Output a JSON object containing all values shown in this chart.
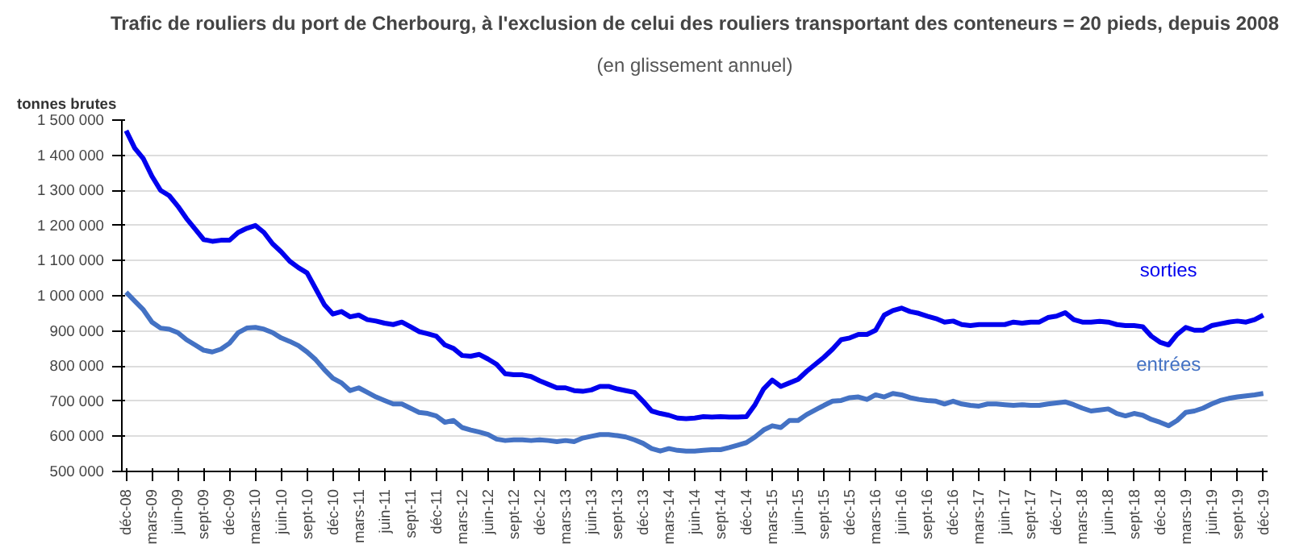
{
  "chart_data": {
    "type": "line",
    "title": "Trafic de rouliers du port de Cherbourg, à l'exclusion de celui des rouliers transportant des conteneurs = 20 pieds, depuis 2008",
    "subtitle": "(en glissement annuel)",
    "ylabel": "tonnes brutes",
    "categories": [
      "déc-08",
      null,
      null,
      "mars-09",
      null,
      null,
      "juin-09",
      null,
      null,
      "sept-09",
      null,
      null,
      "déc-09",
      null,
      null,
      "mars-10",
      null,
      null,
      "juin-10",
      null,
      null,
      "sept-10",
      null,
      null,
      "déc-10",
      null,
      null,
      "mars-11",
      null,
      null,
      "juin-11",
      null,
      null,
      "sept-11",
      null,
      null,
      "déc-11",
      null,
      null,
      "mars-12",
      null,
      null,
      "juin-12",
      null,
      null,
      "sept-12",
      null,
      null,
      "déc-12",
      null,
      null,
      "mars-13",
      null,
      null,
      "juin-13",
      null,
      null,
      "sept-13",
      null,
      null,
      "déc-13",
      null,
      null,
      "mars-14",
      null,
      null,
      "juin-14",
      null,
      null,
      "sept-14",
      null,
      null,
      "déc-14",
      null,
      null,
      "mars-15",
      null,
      null,
      "juin-15",
      null,
      null,
      "sept-15",
      null,
      null,
      "déc-15",
      null,
      null,
      "mars-16",
      null,
      null,
      "juin-16",
      null,
      null,
      "sept-16",
      null,
      null,
      "déc-16",
      null,
      null,
      "mars-17",
      null,
      null,
      "juin-17",
      null,
      null,
      "sept-17",
      null,
      null,
      "déc-17",
      null,
      null,
      "mars-18",
      null,
      null,
      "juin-18",
      null,
      null,
      "sept-18",
      null,
      null,
      "déc-18",
      null,
      null,
      "mars-19",
      null,
      null,
      "juin-19",
      null,
      null,
      "sept-19",
      null,
      null,
      "déc-19"
    ],
    "series": [
      {
        "name": "sorties",
        "color": "#0000ee",
        "values": [
          1470000,
          1420000,
          1390000,
          1340000,
          1300000,
          1285000,
          1255000,
          1220000,
          1190000,
          1160000,
          1155000,
          1158000,
          1158000,
          1180000,
          1192000,
          1200000,
          1180000,
          1148000,
          1125000,
          1098000,
          1080000,
          1065000,
          1020000,
          975000,
          948000,
          955000,
          940000,
          945000,
          932000,
          928000,
          922000,
          918000,
          925000,
          912000,
          898000,
          892000,
          885000,
          860000,
          850000,
          830000,
          828000,
          833000,
          820000,
          805000,
          778000,
          775000,
          775000,
          770000,
          758000,
          748000,
          738000,
          738000,
          730000,
          728000,
          732000,
          742000,
          742000,
          735000,
          730000,
          725000,
          700000,
          672000,
          665000,
          660000,
          652000,
          650000,
          652000,
          656000,
          655000,
          656000,
          655000,
          655000,
          656000,
          690000,
          735000,
          760000,
          742000,
          752000,
          762000,
          785000,
          805000,
          825000,
          848000,
          875000,
          880000,
          890000,
          890000,
          902000,
          945000,
          958000,
          965000,
          955000,
          950000,
          942000,
          935000,
          925000,
          928000,
          918000,
          915000,
          918000,
          918000,
          918000,
          918000,
          925000,
          922000,
          925000,
          925000,
          938000,
          942000,
          952000,
          932000,
          925000,
          925000,
          927000,
          925000,
          918000,
          915000,
          915000,
          912000,
          885000,
          868000,
          860000,
          890000,
          910000,
          902000,
          902000,
          915000,
          920000,
          925000,
          928000,
          925000,
          932000,
          945000
        ]
      },
      {
        "name": "entrées",
        "color": "#4472c4",
        "values": [
          1010000,
          985000,
          960000,
          925000,
          908000,
          905000,
          895000,
          875000,
          860000,
          845000,
          840000,
          848000,
          865000,
          895000,
          908000,
          910000,
          905000,
          895000,
          880000,
          870000,
          858000,
          840000,
          818000,
          790000,
          765000,
          752000,
          730000,
          738000,
          725000,
          712000,
          702000,
          692000,
          692000,
          680000,
          668000,
          665000,
          658000,
          640000,
          645000,
          625000,
          618000,
          612000,
          605000,
          592000,
          588000,
          590000,
          590000,
          588000,
          590000,
          588000,
          585000,
          588000,
          585000,
          595000,
          600000,
          605000,
          605000,
          602000,
          598000,
          590000,
          580000,
          565000,
          558000,
          565000,
          560000,
          558000,
          558000,
          560000,
          562000,
          562000,
          568000,
          575000,
          582000,
          598000,
          618000,
          630000,
          625000,
          645000,
          645000,
          662000,
          675000,
          688000,
          700000,
          702000,
          710000,
          712000,
          705000,
          718000,
          712000,
          722000,
          718000,
          710000,
          705000,
          702000,
          700000,
          692000,
          700000,
          692000,
          688000,
          686000,
          692000,
          692000,
          690000,
          688000,
          690000,
          688000,
          688000,
          692000,
          695000,
          698000,
          690000,
          680000,
          672000,
          675000,
          678000,
          665000,
          658000,
          665000,
          660000,
          648000,
          640000,
          630000,
          645000,
          668000,
          672000,
          680000,
          692000,
          702000,
          708000,
          712000,
          715000,
          718000,
          722000
        ]
      }
    ],
    "ylim": [
      500000,
      1500000
    ],
    "yticks": [
      {
        "value": 500000,
        "label": "500 000"
      },
      {
        "value": 600000,
        "label": "600 000"
      },
      {
        "value": 700000,
        "label": "700 000"
      },
      {
        "value": 800000,
        "label": "800 000"
      },
      {
        "value": 900000,
        "label": "900 000"
      },
      {
        "value": 1000000,
        "label": "1 000 000"
      },
      {
        "value": 1100000,
        "label": "1 100 000"
      },
      {
        "value": 1200000,
        "label": "1 200 000"
      },
      {
        "value": 1300000,
        "label": "1 300 000"
      },
      {
        "value": 1400000,
        "label": "1 400 000"
      },
      {
        "value": 1500000,
        "label": "1 500 000"
      }
    ],
    "grid": "y",
    "marker": "none",
    "line_style": "solid"
  }
}
